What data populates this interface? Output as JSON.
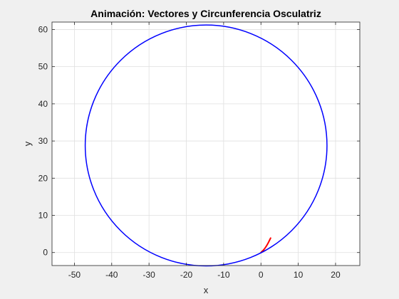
{
  "chart_data": {
    "type": "line",
    "title": "Animación: Vectores y Circunferencia Osculatriz",
    "xlabel": "x",
    "ylabel": "y",
    "xlim": [
      -56,
      26.5
    ],
    "ylim": [
      -3.5,
      62
    ],
    "xticks": [
      -50,
      -40,
      -30,
      -20,
      -10,
      0,
      10,
      20
    ],
    "yticks": [
      0,
      10,
      20,
      30,
      40,
      50,
      60
    ],
    "grid": true,
    "colors": {
      "background": "#f0f0f0",
      "axes": "#ffffff",
      "grid": "#dfdfdf",
      "axis_line": "#262626",
      "circle": "#0000ff",
      "vector": "#ff0000",
      "path": "#8b0000"
    },
    "circle": {
      "center": [
        -14.7,
        28.8
      ],
      "radius": 32.4
    },
    "series": [
      {
        "x": [
          0,
          0.3,
          0.7,
          1.1,
          1.5,
          1.9,
          2.3,
          2.6
        ],
        "y": [
          0,
          0.3,
          0.7,
          1.2,
          1.8,
          2.5,
          3.3,
          3.9
        ]
      },
      {
        "x": [
          0,
          0.6,
          1.2
        ],
        "y": [
          0,
          0.25,
          0.55
        ]
      }
    ]
  }
}
